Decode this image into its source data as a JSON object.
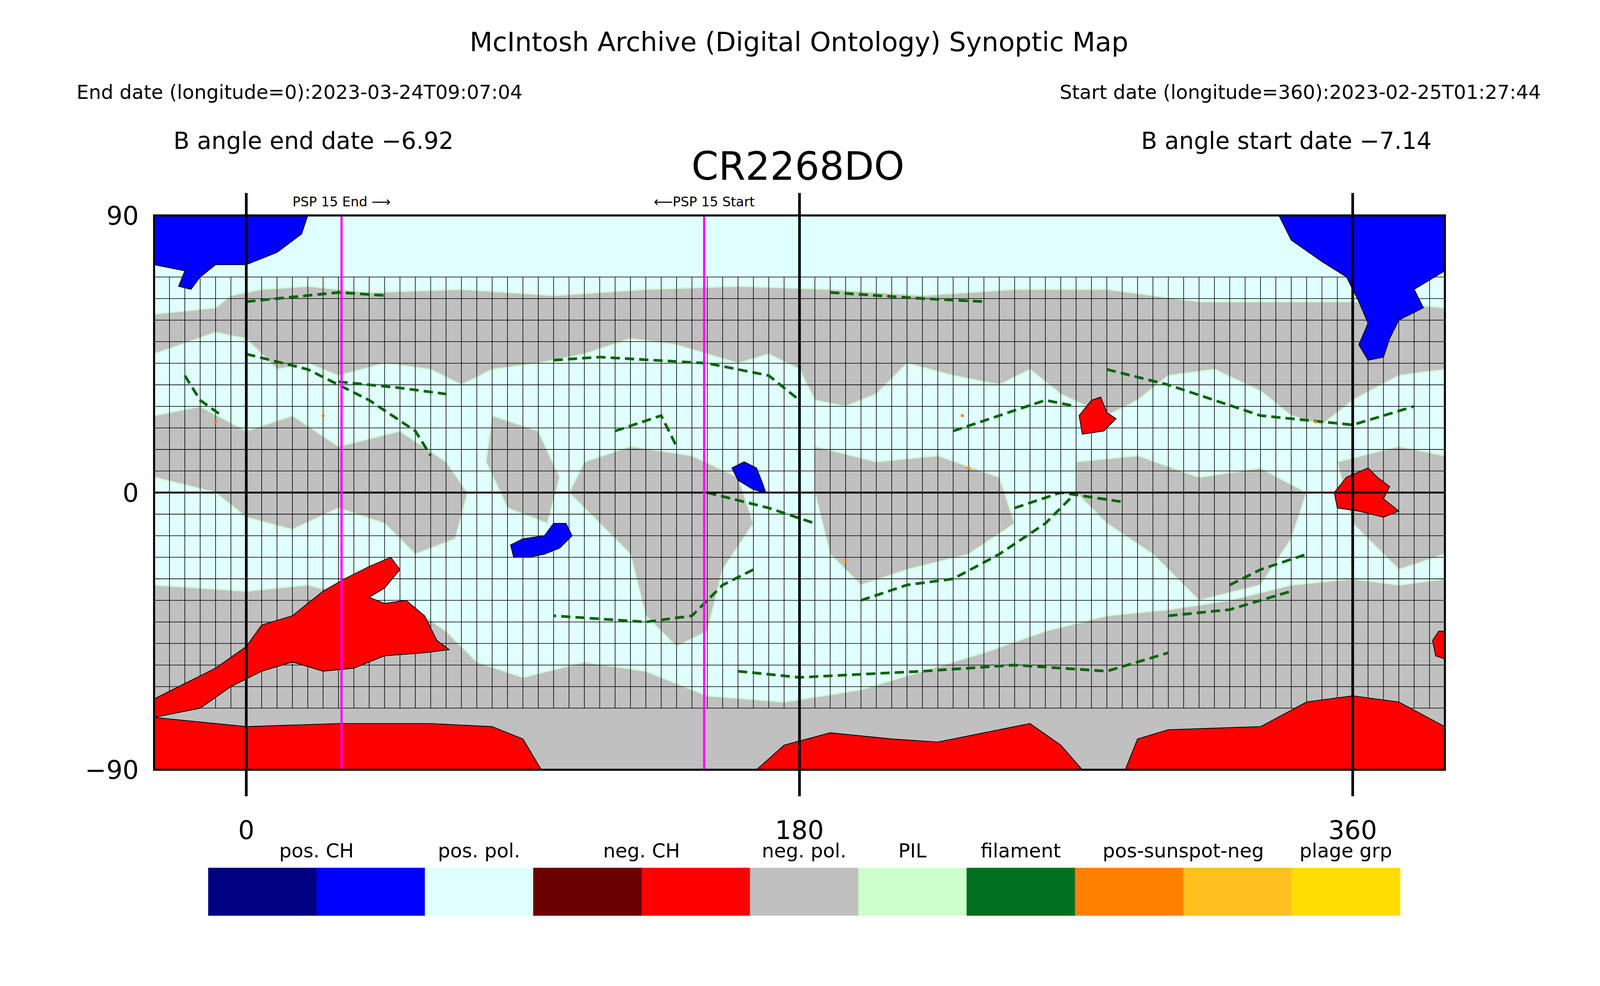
{
  "chart_data": {
    "type": "synoptic_map",
    "title": "McIntosh Archive (Digital Ontology) Synoptic Map",
    "subtitle": "CR2268DO",
    "end_date": "End date (longitude=0):2023-03-24T09:07:04",
    "start_date": "Start date (longitude=360):2023-02-25T01:27:44",
    "b_angle_end": "B angle end date −6.92",
    "b_angle_start": "B angle start date −7.14",
    "xlim": [
      -30,
      390
    ],
    "ylim": [
      -90,
      90
    ],
    "xticks": [
      0,
      180,
      360
    ],
    "yticks": [
      {
        "value": -90,
        "label": "−90"
      },
      0,
      90
    ],
    "grid": true,
    "grid_lon": [
      -25,
      -20,
      -15,
      -10,
      -5,
      0,
      5,
      10,
      15,
      20,
      25,
      30,
      35,
      40,
      45,
      50,
      55,
      60,
      65,
      70,
      75,
      80,
      85,
      90,
      95,
      100,
      105,
      110,
      115,
      120,
      125,
      130,
      135,
      140,
      145,
      150,
      155,
      160,
      165,
      170,
      175,
      180,
      185,
      190,
      195,
      200,
      205,
      210,
      215,
      220,
      225,
      230,
      235,
      240,
      245,
      250,
      255,
      260,
      265,
      270,
      275,
      280,
      285,
      290,
      295,
      300,
      305,
      310,
      315,
      320,
      325,
      330,
      335,
      340,
      345,
      350,
      355,
      360,
      365,
      370,
      375,
      380,
      385
    ],
    "grid_lat": [
      -70,
      -63,
      -56,
      -49,
      -42,
      -35,
      -28,
      -21,
      -14,
      -7,
      0,
      7,
      14,
      21,
      28,
      35,
      42,
      49,
      56,
      63,
      70
    ],
    "background": "#e0ffff",
    "regions": [
      {
        "name": "neg. pol.",
        "color": "#c0c0c0",
        "lon": [
          -30,
          -10,
          -5,
          5,
          20,
          40,
          70,
          100,
          130,
          160,
          190,
          220,
          250,
          280,
          310,
          340,
          370,
          390,
          390,
          375,
          360,
          350,
          340,
          330,
          315,
          300,
          290,
          280,
          265,
          255,
          245,
          230,
          215,
          205,
          195,
          185,
          180,
          170,
          160,
          150,
          140,
          125,
          110,
          95,
          80,
          70,
          60,
          45,
          30,
          20,
          10,
          0,
          -10,
          -30
        ],
        "lat": [
          58,
          60,
          64,
          66,
          67,
          65,
          66,
          64,
          66,
          67,
          66,
          64,
          66,
          66,
          62,
          62,
          62,
          60,
          40,
          38,
          30,
          22,
          25,
          33,
          40,
          38,
          30,
          25,
          32,
          40,
          35,
          38,
          42,
          32,
          28,
          30,
          40,
          45,
          42,
          45,
          48,
          50,
          45,
          42,
          40,
          35,
          40,
          42,
          38,
          42,
          40,
          50,
          52,
          45
        ]
      },
      {
        "name": "neg. pol.",
        "color": "#c0c0c0",
        "lon": [
          -30,
          0,
          20,
          40,
          55,
          65,
          75,
          90,
          110,
          130,
          150,
          175,
          200,
          220,
          240,
          260,
          280,
          300,
          320,
          340,
          360,
          375,
          390,
          390,
          -30
        ],
        "lat": [
          -30,
          -32,
          -30,
          -35,
          -38,
          -45,
          -55,
          -60,
          -55,
          -58,
          -66,
          -68,
          -64,
          -58,
          -52,
          -45,
          -40,
          -38,
          -35,
          -30,
          -28,
          -30,
          -28,
          -90,
          -90
        ]
      },
      {
        "name": "neg. pol.",
        "color": "#c0c0c0",
        "lon": [
          -30,
          -15,
          0,
          15,
          30,
          50,
          65,
          72,
          68,
          55,
          45,
          30,
          15,
          0,
          -10,
          -30
        ],
        "lat": [
          25,
          28,
          20,
          25,
          15,
          20,
          10,
          0,
          -15,
          -20,
          -10,
          -5,
          -12,
          -8,
          0,
          5
        ]
      },
      {
        "name": "neg. pol.",
        "color": "#c0c0c0",
        "lon": [
          105,
          110,
          125,
          145,
          160,
          165,
          155,
          150,
          140,
          130,
          125,
          115
        ],
        "lat": [
          0,
          10,
          15,
          12,
          5,
          -10,
          -25,
          -45,
          -50,
          -40,
          -20,
          -10
        ]
      },
      {
        "name": "neg. pol.",
        "color": "#c0c0c0",
        "lon": [
          185,
          205,
          225,
          245,
          250,
          235,
          215,
          200,
          190,
          185
        ],
        "lat": [
          15,
          10,
          12,
          5,
          -10,
          -20,
          -25,
          -30,
          -20,
          0
        ]
      },
      {
        "name": "neg. pol.",
        "color": "#c0c0c0",
        "lon": [
          270,
          290,
          310,
          330,
          345,
          340,
          330,
          310,
          295,
          280,
          270
        ],
        "lat": [
          10,
          12,
          5,
          8,
          0,
          -15,
          -30,
          -35,
          -20,
          -10,
          0
        ]
      },
      {
        "name": "neg. pol.",
        "color": "#c0c0c0",
        "lon": [
          355,
          375,
          390,
          390,
          375,
          360
        ],
        "lat": [
          10,
          15,
          12,
          -20,
          -25,
          -10
        ]
      },
      {
        "name": "neg. pol.",
        "color": "#c0c0c0",
        "lon": [
          78,
          80,
          95,
          102,
          98,
          85
        ],
        "lat": [
          10,
          25,
          20,
          5,
          -10,
          -5
        ]
      },
      {
        "name": "neg. CH",
        "color": "#ff0000",
        "lon": [
          -30,
          -20,
          -10,
          0,
          5,
          15,
          25,
          32,
          40,
          47,
          50,
          45,
          40,
          45,
          52,
          58,
          62,
          66,
          58,
          45,
          35,
          25,
          15,
          5,
          -5,
          -15,
          -25,
          -30
        ],
        "lat": [
          -67,
          -62,
          -57,
          -50,
          -43,
          -40,
          -32,
          -28,
          -24,
          -21,
          -25,
          -31,
          -34,
          -36,
          -35,
          -40,
          -48,
          -51,
          -52,
          -53,
          -57,
          -58,
          -55,
          -58,
          -63,
          -70,
          -72,
          -73
        ]
      },
      {
        "name": "neg. CH",
        "color": "#ff0000",
        "lon": [
          -30,
          0,
          30,
          60,
          80,
          90,
          96,
          -30
        ],
        "lat": [
          -73,
          -76,
          -75,
          -75,
          -76,
          -80,
          -90,
          -90
        ]
      },
      {
        "name": "neg. CH",
        "color": "#ff0000",
        "lon": [
          166,
          175,
          190,
          210,
          225,
          240,
          255,
          265,
          272
        ],
        "lat": [
          -90,
          -82,
          -78,
          -80,
          -81,
          -78,
          -75,
          -82,
          -90
        ]
      },
      {
        "name": "neg. CH",
        "color": "#ff0000",
        "lon": [
          286,
          290,
          300,
          330,
          345,
          360,
          375,
          390,
          390
        ],
        "lat": [
          -90,
          -80,
          -77,
          -76,
          -68,
          -66,
          -68,
          -76,
          -90
        ]
      },
      {
        "name": "neg. CH",
        "color": "#ff0000",
        "lon": [
          354,
          358,
          365,
          368,
          372,
          370,
          375,
          370,
          362,
          355
        ],
        "lat": [
          0,
          5,
          8,
          5,
          2,
          -2,
          -6,
          -8,
          -6,
          -5
        ]
      },
      {
        "name": "neg. CH",
        "color": "#ff0000",
        "lon": [
          271,
          275,
          278,
          280,
          283,
          279,
          272
        ],
        "lat": [
          25,
          30,
          31,
          26,
          24,
          20,
          19
        ]
      },
      {
        "name": "neg. CH",
        "color": "#ff0000",
        "lon": [
          386,
          388,
          390,
          390,
          387
        ],
        "lat": [
          -48,
          -45,
          -45,
          -54,
          -53
        ]
      },
      {
        "name": "pos. CH",
        "color": "#0000ff",
        "lon": [
          -30,
          20,
          18,
          10,
          0,
          -10,
          -15,
          -18,
          -22,
          -20,
          -30
        ],
        "lat": [
          90,
          90,
          84,
          78,
          74,
          74,
          70,
          66,
          67,
          72,
          74
        ]
      },
      {
        "name": "pos. CH",
        "color": "#0000ff",
        "lon": [
          336,
          390,
          390,
          385,
          380,
          383,
          375,
          372,
          370,
          365,
          362,
          365,
          362,
          358,
          350,
          340
        ],
        "lat": [
          90,
          90,
          72,
          69,
          66,
          60,
          56,
          50,
          44,
          43,
          48,
          55,
          62,
          70,
          75,
          82
        ]
      },
      {
        "name": "pos. CH",
        "color": "#0000ff",
        "lon": [
          86,
          90,
          97,
          100,
          104,
          106,
          102,
          97,
          92,
          87
        ],
        "lat": [
          -17,
          -15,
          -14,
          -10,
          -10,
          -14,
          -18,
          -20,
          -21,
          -21
        ]
      },
      {
        "name": "pos. CH",
        "color": "#0000ff",
        "lon": [
          158,
          162,
          166,
          168,
          169,
          165,
          160
        ],
        "lat": [
          8,
          10,
          8,
          3,
          0,
          1,
          4
        ]
      }
    ],
    "filaments": {
      "color": "#006400",
      "lines": [
        {
          "lon": [
            0,
            30,
            45
          ],
          "lat": [
            62,
            65,
            64
          ]
        },
        {
          "lon": [
            0,
            20,
            40,
            55,
            60
          ],
          "lat": [
            45,
            40,
            30,
            20,
            12
          ]
        },
        {
          "lon": [
            30,
            50,
            65
          ],
          "lat": [
            36,
            34,
            32
          ]
        },
        {
          "lon": [
            100,
            115,
            150,
            170,
            180
          ],
          "lat": [
            43,
            44,
            42,
            38,
            30
          ]
        },
        {
          "lon": [
            165,
            155,
            145,
            130,
            100
          ],
          "lat": [
            -25,
            -30,
            -40,
            -42,
            -40
          ]
        },
        {
          "lon": [
            160,
            180,
            220,
            250,
            280,
            300
          ],
          "lat": [
            -58,
            -60,
            -58,
            -56,
            -58,
            -52
          ]
        },
        {
          "lon": [
            200,
            215,
            230,
            245,
            260,
            270
          ],
          "lat": [
            -35,
            -30,
            -28,
            -20,
            -10,
            0
          ]
        },
        {
          "lon": [
            230,
            245,
            260,
            270
          ],
          "lat": [
            20,
            25,
            30,
            28
          ]
        },
        {
          "lon": [
            280,
            300,
            330,
            360,
            380
          ],
          "lat": [
            40,
            35,
            25,
            22,
            28
          ]
        },
        {
          "lon": [
            320,
            330,
            345
          ],
          "lat": [
            -30,
            -25,
            -20
          ]
        },
        {
          "lon": [
            300,
            320,
            340
          ],
          "lat": [
            -40,
            -38,
            -32
          ]
        },
        {
          "lon": [
            190,
            220,
            240
          ],
          "lat": [
            65,
            63,
            62
          ]
        },
        {
          "lon": [
            250,
            265,
            285
          ],
          "lat": [
            -5,
            0,
            -3
          ]
        },
        {
          "lon": [
            120,
            135,
            140
          ],
          "lat": [
            20,
            25,
            15
          ]
        },
        {
          "lon": [
            -20,
            -15,
            -8
          ],
          "lat": [
            38,
            30,
            25
          ]
        },
        {
          "lon": [
            150,
            170,
            185
          ],
          "lat": [
            0,
            -5,
            -10
          ]
        }
      ]
    },
    "sunspots": {
      "color": "#ff8000",
      "lon": [
        -10,
        25,
        233,
        235,
        195,
        348,
        360
      ],
      "lat": [
        23,
        25,
        25,
        8,
        -22,
        23,
        -22
      ]
    },
    "annotations": [
      {
        "text": "PSP 15 End ⟶",
        "x": 31,
        "color": "#ff00ff"
      },
      {
        "text": "⟵PSP 15 Start",
        "x": 149,
        "color": "#ff00ff"
      }
    ],
    "legend_items": [
      {
        "label": "pos. CH",
        "colors": [
          "#000080",
          "#0000ff"
        ]
      },
      {
        "label": "pos. pol.",
        "colors": [
          "#e0ffff"
        ]
      },
      {
        "label": "neg. CH",
        "colors": [
          "#6b0000",
          "#ff0000"
        ]
      },
      {
        "label": "neg. pol.",
        "colors": [
          "#c0c0c0"
        ]
      },
      {
        "label": "PIL",
        "colors": [
          "#ccffcc"
        ]
      },
      {
        "label": "filament",
        "colors": [
          "#006f20"
        ]
      },
      {
        "label": "pos-sunspot-neg",
        "colors": [
          "#ff8000",
          "#ffc020"
        ]
      },
      {
        "label": "plage grp",
        "colors": [
          "#ffdd00"
        ]
      }
    ]
  }
}
